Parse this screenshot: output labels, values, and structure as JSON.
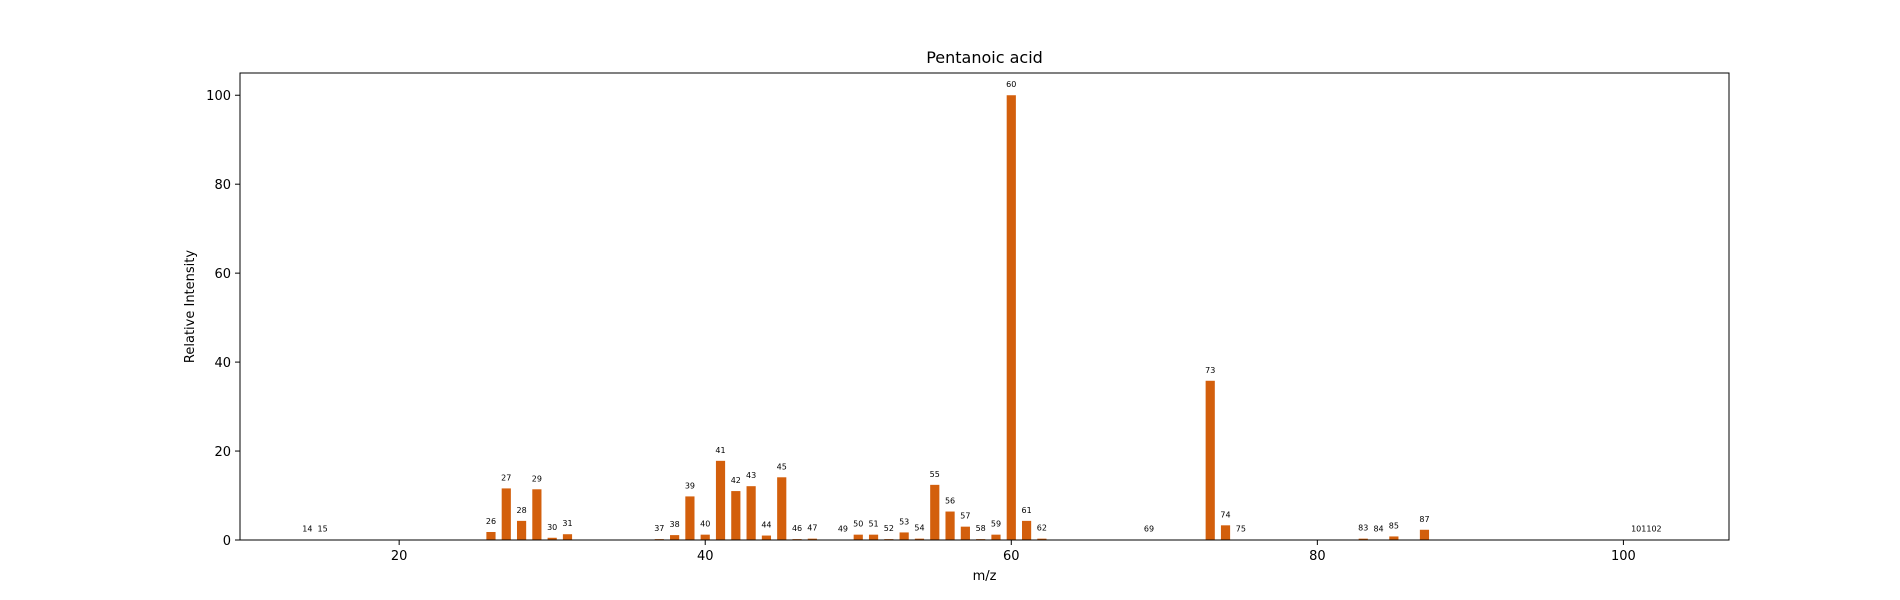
{
  "chart_data": {
    "type": "bar",
    "title": "Pentanoic acid",
    "xlabel": "m/z",
    "ylabel": "Relative Intensity",
    "xlim": [
      9.6,
      106.9
    ],
    "ylim": [
      0,
      105
    ],
    "xticks": [
      20,
      40,
      60,
      80,
      100
    ],
    "yticks": [
      0,
      20,
      40,
      60,
      80,
      100
    ],
    "grid": false,
    "bar_color": "#d35f0c",
    "x": [
      14,
      15,
      26,
      27,
      28,
      29,
      30,
      31,
      37,
      38,
      39,
      40,
      41,
      42,
      43,
      44,
      45,
      46,
      47,
      49,
      50,
      51,
      52,
      53,
      54,
      55,
      56,
      57,
      58,
      59,
      60,
      61,
      62,
      69,
      73,
      74,
      75,
      83,
      84,
      85,
      87,
      101,
      102
    ],
    "values": [
      0.1,
      0.1,
      1.8,
      11.6,
      4.3,
      11.4,
      0.5,
      1.3,
      0.2,
      1.1,
      9.8,
      1.2,
      17.8,
      11.0,
      12.1,
      1.0,
      14.1,
      0.2,
      0.3,
      0.1,
      1.2,
      1.2,
      0.2,
      1.7,
      0.3,
      12.4,
      6.4,
      3.0,
      0.2,
      1.2,
      100.0,
      4.3,
      0.3,
      0.1,
      35.8,
      3.3,
      0.1,
      0.3,
      0.1,
      0.8,
      2.3,
      0.1,
      0.1
    ],
    "labels": [
      "14",
      "15",
      "26",
      "27",
      "28",
      "29",
      "30",
      "31",
      "37",
      "38",
      "39",
      "40",
      "41",
      "42",
      "43",
      "44",
      "45",
      "46",
      "47",
      "49",
      "50",
      "51",
      "52",
      "53",
      "54",
      "55",
      "56",
      "57",
      "58",
      "59",
      "60",
      "61",
      "62",
      "69",
      "73",
      "74",
      "75",
      "83",
      "84",
      "85",
      "87",
      "101",
      "102"
    ]
  }
}
